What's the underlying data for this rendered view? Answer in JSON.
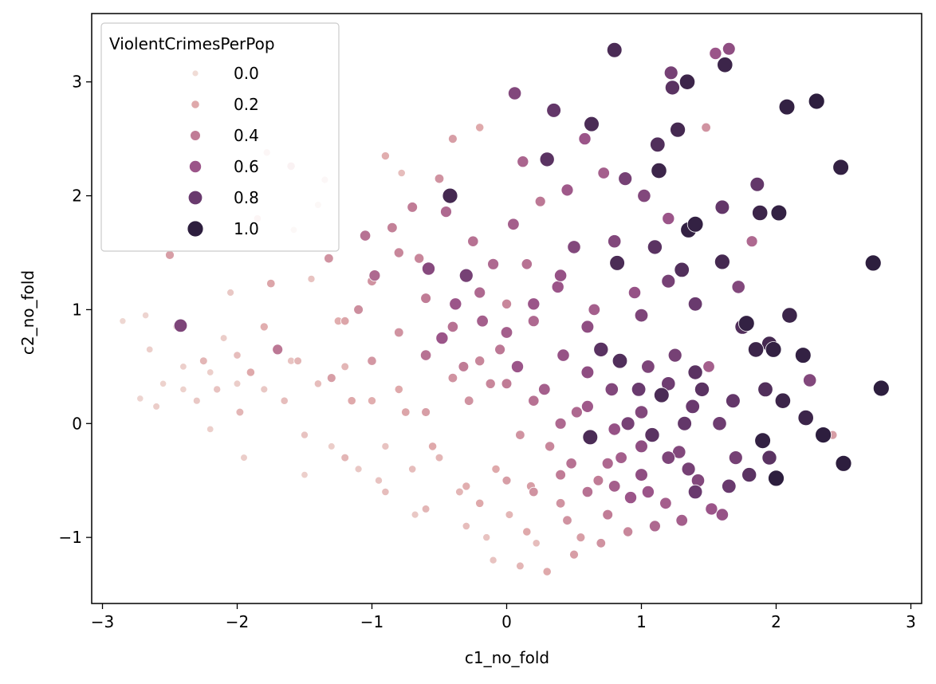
{
  "chart_data": {
    "type": "scatter",
    "title": "",
    "xlabel": "c1_no_fold",
    "ylabel": "c2_no_fold",
    "xlim": [
      -3.08,
      3.08
    ],
    "ylim": [
      -1.58,
      3.6
    ],
    "x_ticks": [
      -3,
      -2,
      -1,
      0,
      1,
      2,
      3
    ],
    "y_ticks": [
      -1,
      0,
      1,
      2,
      3
    ],
    "x_tick_labels": [
      "−3",
      "−2",
      "−1",
      "0",
      "1",
      "2",
      "3"
    ],
    "y_tick_labels": [
      "−1",
      "0",
      "1",
      "2",
      "3"
    ],
    "grid": false,
    "legend": {
      "title": "ViolentCrimesPerPop",
      "placement": "top-left",
      "entries": [
        {
          "label": "0.0",
          "value": 0.0
        },
        {
          "label": "0.2",
          "value": 0.2
        },
        {
          "label": "0.4",
          "value": 0.4
        },
        {
          "label": "0.6",
          "value": 0.6
        },
        {
          "label": "0.8",
          "value": 0.8
        },
        {
          "label": "1.0",
          "value": 1.0
        }
      ]
    },
    "color_scale": {
      "low": "#f0dcd6",
      "high": "#2d1e3e",
      "stops": [
        "#f0dcd6",
        "#dfa9ab",
        "#c07c96",
        "#9b5589",
        "#693a6e",
        "#2d1e3e"
      ]
    },
    "points_summary": "approximately 1994 points; hue and size encode ViolentCrimesPerPop",
    "points": [
      [
        -2.85,
        0.9,
        0.02
      ],
      [
        -2.68,
        0.95,
        0.03
      ],
      [
        -2.65,
        0.65,
        0.05
      ],
      [
        -2.55,
        0.35,
        0.04
      ],
      [
        -2.72,
        0.22,
        0.03
      ],
      [
        -2.6,
        0.15,
        0.06
      ],
      [
        -2.5,
        1.48,
        0.25
      ],
      [
        -2.45,
        0.85,
        0.1
      ],
      [
        -2.42,
        0.86,
        0.72
      ],
      [
        -2.4,
        0.5,
        0.05
      ],
      [
        -2.3,
        0.2,
        0.08
      ],
      [
        -2.25,
        0.55,
        0.15
      ],
      [
        -2.2,
        -0.05,
        0.05
      ],
      [
        -2.15,
        0.3,
        0.1
      ],
      [
        -2.1,
        0.75,
        0.06
      ],
      [
        -2.05,
        1.15,
        0.08
      ],
      [
        -2.0,
        0.6,
        0.12
      ],
      [
        -1.98,
        0.1,
        0.15
      ],
      [
        -1.95,
        -0.3,
        0.06
      ],
      [
        -1.9,
        0.45,
        0.2
      ],
      [
        -1.85,
        1.8,
        0.12
      ],
      [
        -1.8,
        0.85,
        0.18
      ],
      [
        -1.78,
        2.38,
        0.1
      ],
      [
        -1.75,
        1.23,
        0.22
      ],
      [
        -1.7,
        0.65,
        0.42
      ],
      [
        -1.65,
        0.2,
        0.12
      ],
      [
        -1.6,
        2.26,
        0.2
      ],
      [
        -1.58,
        1.7,
        0.05
      ],
      [
        -1.55,
        0.55,
        0.15
      ],
      [
        -1.5,
        -0.1,
        0.1
      ],
      [
        -1.45,
        1.27,
        0.1
      ],
      [
        -1.4,
        1.92,
        0.06
      ],
      [
        -1.35,
        2.14,
        0.08
      ],
      [
        -1.32,
        1.45,
        0.3
      ],
      [
        -1.3,
        0.4,
        0.25
      ],
      [
        -1.25,
        0.9,
        0.18
      ],
      [
        -1.2,
        -0.3,
        0.15
      ],
      [
        -1.15,
        0.2,
        0.2
      ],
      [
        -1.1,
        1.0,
        0.32
      ],
      [
        -1.05,
        1.65,
        0.45
      ],
      [
        -1.0,
        0.55,
        0.28
      ],
      [
        -0.98,
        1.3,
        0.5
      ],
      [
        -0.95,
        -0.5,
        0.1
      ],
      [
        -0.9,
        2.35,
        0.18
      ],
      [
        -0.85,
        1.72,
        0.38
      ],
      [
        -0.8,
        0.8,
        0.3
      ],
      [
        -0.78,
        2.2,
        0.12
      ],
      [
        -0.75,
        0.1,
        0.22
      ],
      [
        -0.7,
        1.9,
        0.4
      ],
      [
        -0.68,
        -0.8,
        0.08
      ],
      [
        -0.65,
        1.45,
        0.35
      ],
      [
        -0.6,
        0.6,
        0.45
      ],
      [
        -0.58,
        1.36,
        0.68
      ],
      [
        -0.55,
        -0.2,
        0.2
      ],
      [
        -0.5,
        2.15,
        0.3
      ],
      [
        -0.48,
        0.75,
        0.6
      ],
      [
        -0.45,
        1.86,
        0.5
      ],
      [
        -0.42,
        2.0,
        0.92
      ],
      [
        -0.4,
        2.5,
        0.25
      ],
      [
        -0.38,
        1.05,
        0.6
      ],
      [
        -0.35,
        -0.6,
        0.15
      ],
      [
        -0.32,
        0.5,
        0.4
      ],
      [
        -0.3,
        1.3,
        0.75
      ],
      [
        -0.28,
        0.2,
        0.3
      ],
      [
        -0.25,
        1.6,
        0.45
      ],
      [
        -0.2,
        2.6,
        0.2
      ],
      [
        -0.18,
        0.9,
        0.55
      ],
      [
        -0.15,
        -1.0,
        0.1
      ],
      [
        -0.12,
        0.35,
        0.35
      ],
      [
        -0.1,
        1.4,
        0.5
      ],
      [
        -0.08,
        -0.4,
        0.2
      ],
      [
        -0.05,
        0.65,
        0.42
      ],
      [
        0.0,
        1.05,
        0.35
      ],
      [
        0.02,
        -0.8,
        0.15
      ],
      [
        0.05,
        1.75,
        0.55
      ],
      [
        0.06,
        2.9,
        0.7
      ],
      [
        0.08,
        0.5,
        0.6
      ],
      [
        0.1,
        -0.1,
        0.3
      ],
      [
        0.12,
        2.3,
        0.52
      ],
      [
        0.15,
        1.4,
        0.45
      ],
      [
        0.18,
        -0.55,
        0.25
      ],
      [
        0.2,
        0.9,
        0.5
      ],
      [
        0.22,
        -1.05,
        0.12
      ],
      [
        0.25,
        1.95,
        0.42
      ],
      [
        0.28,
        0.3,
        0.55
      ],
      [
        0.3,
        2.32,
        0.85
      ],
      [
        0.32,
        -0.2,
        0.35
      ],
      [
        0.35,
        2.75,
        0.82
      ],
      [
        0.38,
        1.2,
        0.6
      ],
      [
        0.4,
        -0.7,
        0.3
      ],
      [
        0.42,
        0.6,
        0.62
      ],
      [
        0.45,
        2.05,
        0.58
      ],
      [
        0.48,
        -0.35,
        0.45
      ],
      [
        0.5,
        1.55,
        0.7
      ],
      [
        0.52,
        0.1,
        0.5
      ],
      [
        0.55,
        -1.0,
        0.25
      ],
      [
        0.58,
        2.5,
        0.6
      ],
      [
        0.6,
        0.45,
        0.65
      ],
      [
        0.62,
        -0.12,
        0.9
      ],
      [
        0.63,
        2.63,
        0.9
      ],
      [
        0.65,
        1.0,
        0.55
      ],
      [
        0.68,
        -0.5,
        0.4
      ],
      [
        0.7,
        0.65,
        0.85
      ],
      [
        0.72,
        2.2,
        0.55
      ],
      [
        0.75,
        -0.8,
        0.4
      ],
      [
        0.78,
        0.3,
        0.7
      ],
      [
        0.8,
        3.28,
        0.9
      ],
      [
        0.82,
        1.41,
        0.9
      ],
      [
        0.84,
        0.55,
        0.88
      ],
      [
        0.85,
        -0.3,
        0.55
      ],
      [
        0.88,
        2.15,
        0.75
      ],
      [
        0.9,
        0.0,
        0.75
      ],
      [
        0.92,
        -0.65,
        0.6
      ],
      [
        0.95,
        1.15,
        0.62
      ],
      [
        0.98,
        0.3,
        0.8
      ],
      [
        1.0,
        -0.45,
        0.65
      ],
      [
        1.02,
        2.0,
        0.7
      ],
      [
        1.05,
        0.5,
        0.72
      ],
      [
        1.08,
        -0.1,
        0.85
      ],
      [
        1.1,
        1.55,
        0.85
      ],
      [
        1.12,
        2.45,
        0.88
      ],
      [
        1.13,
        2.22,
        0.95
      ],
      [
        1.15,
        0.25,
        0.9
      ],
      [
        1.18,
        -0.7,
        0.55
      ],
      [
        1.2,
        1.8,
        0.6
      ],
      [
        1.22,
        3.08,
        0.75
      ],
      [
        1.23,
        2.95,
        0.85
      ],
      [
        1.25,
        0.6,
        0.75
      ],
      [
        1.27,
        2.58,
        0.92
      ],
      [
        1.28,
        -0.25,
        0.7
      ],
      [
        1.3,
        1.35,
        0.88
      ],
      [
        1.32,
        0.0,
        0.82
      ],
      [
        1.34,
        3.0,
        0.95
      ],
      [
        1.35,
        1.7,
        0.98
      ],
      [
        1.38,
        0.15,
        0.8
      ],
      [
        1.4,
        1.75,
        0.98
      ],
      [
        1.42,
        -0.5,
        0.7
      ],
      [
        1.45,
        0.3,
        0.85
      ],
      [
        1.48,
        2.6,
        0.3
      ],
      [
        1.5,
        0.5,
        0.55
      ],
      [
        1.52,
        -0.75,
        0.6
      ],
      [
        1.55,
        3.25,
        0.6
      ],
      [
        1.58,
        0.0,
        0.78
      ],
      [
        1.6,
        1.42,
        0.92
      ],
      [
        1.62,
        3.15,
        0.95
      ],
      [
        1.65,
        3.29,
        0.65
      ],
      [
        1.68,
        0.2,
        0.82
      ],
      [
        1.7,
        -0.3,
        0.75
      ],
      [
        1.72,
        1.2,
        0.7
      ],
      [
        1.75,
        0.85,
        0.88
      ],
      [
        1.78,
        0.88,
        0.98
      ],
      [
        1.8,
        -0.45,
        0.85
      ],
      [
        1.82,
        1.6,
        0.5
      ],
      [
        1.85,
        0.65,
        0.95
      ],
      [
        1.86,
        2.1,
        0.82
      ],
      [
        1.88,
        1.85,
        0.95
      ],
      [
        1.9,
        -0.15,
        0.98
      ],
      [
        1.92,
        0.3,
        0.88
      ],
      [
        1.95,
        0.7,
        0.92
      ],
      [
        1.98,
        0.65,
        0.98
      ],
      [
        2.0,
        -0.48,
        1.0
      ],
      [
        2.02,
        1.85,
        0.98
      ],
      [
        2.05,
        0.2,
        0.95
      ],
      [
        2.08,
        2.78,
        0.98
      ],
      [
        2.1,
        0.95,
        0.95
      ],
      [
        2.2,
        0.6,
        0.98
      ],
      [
        2.22,
        0.05,
        0.95
      ],
      [
        2.25,
        0.38,
        0.7
      ],
      [
        2.3,
        2.83,
        1.0
      ],
      [
        2.35,
        -0.1,
        1.0
      ],
      [
        2.42,
        -0.1,
        0.25
      ],
      [
        2.48,
        2.25,
        0.98
      ],
      [
        2.5,
        -0.35,
        1.0
      ],
      [
        2.72,
        1.41,
        1.0
      ],
      [
        2.78,
        0.31,
        1.0
      ],
      [
        -0.5,
        -0.3,
        0.15
      ],
      [
        -0.7,
        -0.4,
        0.12
      ],
      [
        -0.9,
        -0.2,
        0.1
      ],
      [
        -1.1,
        -0.4,
        0.08
      ],
      [
        -1.3,
        -0.2,
        0.06
      ],
      [
        -1.5,
        -0.45,
        0.05
      ],
      [
        -0.3,
        -0.9,
        0.12
      ],
      [
        -0.1,
        -1.2,
        0.1
      ],
      [
        0.1,
        -1.25,
        0.15
      ],
      [
        0.3,
        -1.3,
        0.2
      ],
      [
        0.5,
        -1.15,
        0.25
      ],
      [
        0.7,
        -1.05,
        0.3
      ],
      [
        0.9,
        -0.95,
        0.35
      ],
      [
        1.1,
        -0.9,
        0.5
      ],
      [
        1.3,
        -0.85,
        0.55
      ],
      [
        -0.2,
        -0.7,
        0.2
      ],
      [
        0.0,
        -0.5,
        0.25
      ],
      [
        0.2,
        -0.6,
        0.3
      ],
      [
        0.4,
        -0.45,
        0.4
      ],
      [
        0.6,
        -0.6,
        0.45
      ],
      [
        0.8,
        -0.55,
        0.55
      ],
      [
        1.0,
        -0.2,
        0.65
      ],
      [
        1.2,
        -0.3,
        0.72
      ],
      [
        1.4,
        -0.6,
        0.8
      ],
      [
        1.6,
        -0.8,
        0.62
      ],
      [
        -0.6,
        0.1,
        0.25
      ],
      [
        -0.8,
        0.3,
        0.2
      ],
      [
        -1.0,
        0.2,
        0.18
      ],
      [
        -1.2,
        0.5,
        0.15
      ],
      [
        -1.4,
        0.35,
        0.12
      ],
      [
        -1.6,
        0.55,
        0.1
      ],
      [
        -1.8,
        0.3,
        0.08
      ],
      [
        -2.0,
        0.35,
        0.06
      ],
      [
        -2.2,
        0.45,
        0.05
      ],
      [
        -2.4,
        0.3,
        0.04
      ],
      [
        -0.4,
        0.4,
        0.3
      ],
      [
        -0.2,
        0.55,
        0.35
      ],
      [
        0.0,
        0.35,
        0.4
      ],
      [
        0.2,
        0.2,
        0.45
      ],
      [
        0.4,
        0.0,
        0.5
      ],
      [
        0.6,
        0.15,
        0.58
      ],
      [
        0.8,
        -0.05,
        0.62
      ],
      [
        1.0,
        0.1,
        0.7
      ],
      [
        1.2,
        0.35,
        0.78
      ],
      [
        1.4,
        0.45,
        0.85
      ],
      [
        -0.9,
        -0.6,
        0.12
      ],
      [
        -0.6,
        -0.75,
        0.15
      ],
      [
        -0.3,
        -0.55,
        0.18
      ],
      [
        0.15,
        -0.95,
        0.2
      ],
      [
        0.45,
        -0.85,
        0.3
      ],
      [
        0.75,
        -0.35,
        0.5
      ],
      [
        1.05,
        -0.6,
        0.6
      ],
      [
        1.35,
        -0.4,
        0.75
      ],
      [
        1.65,
        -0.55,
        0.8
      ],
      [
        1.95,
        -0.3,
        0.85
      ],
      [
        -1.2,
        0.9,
        0.22
      ],
      [
        -1.0,
        1.25,
        0.3
      ],
      [
        -0.8,
        1.5,
        0.35
      ],
      [
        -0.6,
        1.1,
        0.4
      ],
      [
        -0.4,
        0.85,
        0.45
      ],
      [
        -0.2,
        1.15,
        0.5
      ],
      [
        0.0,
        0.8,
        0.55
      ],
      [
        0.2,
        1.05,
        0.6
      ],
      [
        0.4,
        1.3,
        0.62
      ],
      [
        0.6,
        0.85,
        0.65
      ],
      [
        0.8,
        1.6,
        0.7
      ],
      [
        1.0,
        0.95,
        0.72
      ],
      [
        1.2,
        1.25,
        0.75
      ],
      [
        1.4,
        1.05,
        0.8
      ],
      [
        1.6,
        1.9,
        0.82
      ]
    ]
  }
}
